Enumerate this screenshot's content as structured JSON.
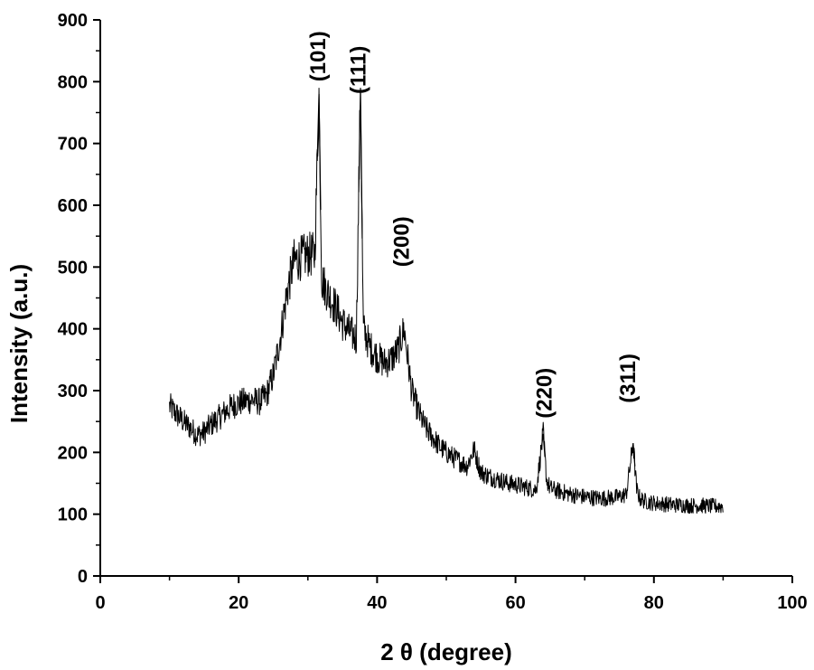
{
  "chart_data": {
    "type": "line",
    "title": "",
    "xlabel": "2 θ (degree)",
    "ylabel": "Intensity (a.u.)",
    "xlim": [
      0,
      100
    ],
    "ylim": [
      0,
      900
    ],
    "xticks": [
      0,
      20,
      40,
      60,
      80,
      100
    ],
    "yticks": [
      0,
      100,
      200,
      300,
      400,
      500,
      600,
      700,
      800,
      900
    ],
    "grid": false,
    "legend": "none",
    "line_color": "#000000",
    "series": [
      {
        "x": [
          10,
          11,
          12,
          13,
          14,
          15,
          16,
          17,
          18,
          19,
          20,
          21,
          22,
          23,
          24,
          25,
          26,
          27,
          28,
          29,
          30,
          31,
          31.6,
          32,
          33,
          34,
          35,
          36,
          37,
          37.6,
          38,
          39,
          40,
          41,
          42,
          43,
          43.9,
          45,
          46,
          47,
          48,
          49,
          50,
          51,
          52,
          53,
          54,
          55,
          56,
          57,
          58,
          59,
          60,
          61,
          62,
          63,
          64,
          64.5,
          65,
          66,
          67,
          68,
          69,
          70,
          71,
          72,
          73,
          74,
          75,
          76,
          77,
          77.5,
          78,
          79,
          80,
          81,
          82,
          83,
          84,
          85,
          86,
          87,
          88,
          89,
          90
        ],
        "y": [
          275,
          262,
          250,
          240,
          228,
          232,
          245,
          255,
          265,
          275,
          280,
          283,
          285,
          282,
          292,
          325,
          385,
          460,
          510,
          515,
          520,
          520,
          780,
          480,
          455,
          435,
          410,
          395,
          385,
          790,
          400,
          370,
          355,
          345,
          350,
          365,
          400,
          300,
          265,
          240,
          225,
          210,
          200,
          192,
          185,
          178,
          205,
          168,
          162,
          158,
          154,
          150,
          148,
          145,
          142,
          140,
          230,
          155,
          142,
          138,
          135,
          132,
          130,
          128,
          127,
          126,
          126,
          127,
          128,
          132,
          215,
          140,
          125,
          120,
          118,
          117,
          116,
          115,
          115,
          114,
          114,
          114,
          113,
          113,
          113
        ]
      }
    ],
    "annotations": [
      {
        "text": "(101)",
        "x": 32.5,
        "y": 800
      },
      {
        "text": "(111)",
        "x": 38.3,
        "y": 780
      },
      {
        "text": "(200)",
        "x": 44.6,
        "y": 500
      },
      {
        "text": "(220)",
        "x": 65.2,
        "y": 255
      },
      {
        "text": "(311)",
        "x": 77.3,
        "y": 280
      }
    ]
  }
}
